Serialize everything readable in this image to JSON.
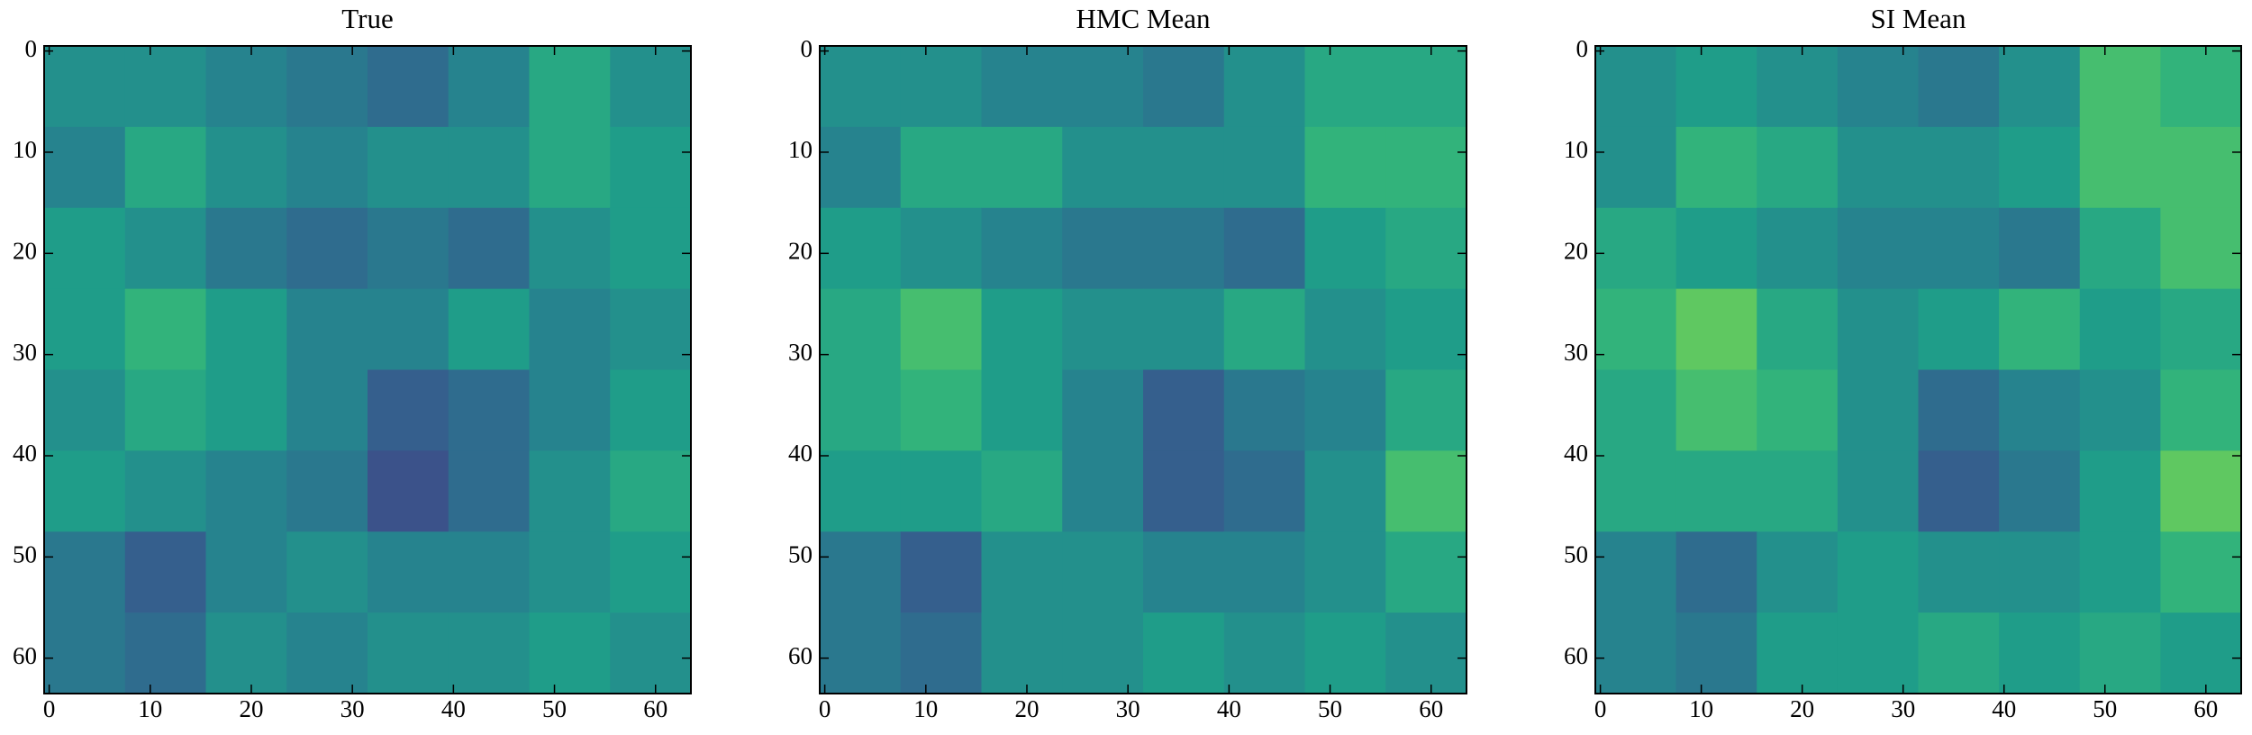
{
  "chart_data": [
    {
      "type": "heatmap",
      "title": "True",
      "colormap": "viridis",
      "xlim": [
        -0.5,
        63.5
      ],
      "ylim": [
        63.5,
        -0.5
      ],
      "xticks": [
        0,
        10,
        20,
        30,
        40,
        50,
        60
      ],
      "yticks": [
        0,
        10,
        20,
        30,
        40,
        50,
        60
      ],
      "z": [
        [
          0.5,
          0.5,
          0.45,
          0.4,
          0.35,
          0.45,
          0.6,
          0.5
        ],
        [
          0.45,
          0.6,
          0.5,
          0.45,
          0.5,
          0.5,
          0.6,
          0.55
        ],
        [
          0.55,
          0.5,
          0.4,
          0.35,
          0.4,
          0.35,
          0.5,
          0.55
        ],
        [
          0.55,
          0.65,
          0.55,
          0.45,
          0.45,
          0.55,
          0.45,
          0.5
        ],
        [
          0.5,
          0.6,
          0.55,
          0.45,
          0.3,
          0.35,
          0.45,
          0.55
        ],
        [
          0.55,
          0.5,
          0.45,
          0.4,
          0.25,
          0.35,
          0.5,
          0.6
        ],
        [
          0.4,
          0.3,
          0.45,
          0.5,
          0.45,
          0.45,
          0.5,
          0.55
        ],
        [
          0.4,
          0.35,
          0.5,
          0.45,
          0.5,
          0.5,
          0.55,
          0.5
        ]
      ]
    },
    {
      "type": "heatmap",
      "title": "HMC Mean",
      "colormap": "viridis",
      "xlim": [
        -0.5,
        63.5
      ],
      "ylim": [
        63.5,
        -0.5
      ],
      "xticks": [
        0,
        10,
        20,
        30,
        40,
        50,
        60
      ],
      "yticks": [
        0,
        10,
        20,
        30,
        40,
        50,
        60
      ],
      "z": [
        [
          0.5,
          0.5,
          0.45,
          0.45,
          0.4,
          0.5,
          0.6,
          0.6
        ],
        [
          0.45,
          0.6,
          0.6,
          0.5,
          0.5,
          0.5,
          0.65,
          0.65
        ],
        [
          0.55,
          0.5,
          0.45,
          0.4,
          0.4,
          0.35,
          0.55,
          0.6
        ],
        [
          0.6,
          0.7,
          0.55,
          0.5,
          0.5,
          0.6,
          0.5,
          0.55
        ],
        [
          0.6,
          0.65,
          0.55,
          0.45,
          0.3,
          0.4,
          0.45,
          0.6
        ],
        [
          0.55,
          0.55,
          0.6,
          0.45,
          0.3,
          0.35,
          0.5,
          0.7
        ],
        [
          0.4,
          0.3,
          0.5,
          0.5,
          0.45,
          0.45,
          0.5,
          0.6
        ],
        [
          0.4,
          0.35,
          0.5,
          0.5,
          0.55,
          0.5,
          0.55,
          0.5
        ]
      ]
    },
    {
      "type": "heatmap",
      "title": "SI Mean",
      "colormap": "viridis",
      "xlim": [
        -0.5,
        63.5
      ],
      "ylim": [
        63.5,
        -0.5
      ],
      "xticks": [
        0,
        10,
        20,
        30,
        40,
        50,
        60
      ],
      "yticks": [
        0,
        10,
        20,
        30,
        40,
        50,
        60
      ],
      "z": [
        [
          0.5,
          0.55,
          0.5,
          0.45,
          0.4,
          0.5,
          0.7,
          0.65
        ],
        [
          0.5,
          0.65,
          0.6,
          0.5,
          0.5,
          0.55,
          0.7,
          0.7
        ],
        [
          0.6,
          0.55,
          0.5,
          0.45,
          0.45,
          0.4,
          0.6,
          0.7
        ],
        [
          0.65,
          0.75,
          0.6,
          0.5,
          0.55,
          0.65,
          0.55,
          0.6
        ],
        [
          0.6,
          0.7,
          0.65,
          0.5,
          0.35,
          0.45,
          0.5,
          0.65
        ],
        [
          0.6,
          0.6,
          0.6,
          0.5,
          0.3,
          0.4,
          0.55,
          0.75
        ],
        [
          0.45,
          0.35,
          0.5,
          0.55,
          0.5,
          0.5,
          0.55,
          0.65
        ],
        [
          0.45,
          0.4,
          0.55,
          0.55,
          0.6,
          0.55,
          0.6,
          0.55
        ]
      ]
    }
  ]
}
